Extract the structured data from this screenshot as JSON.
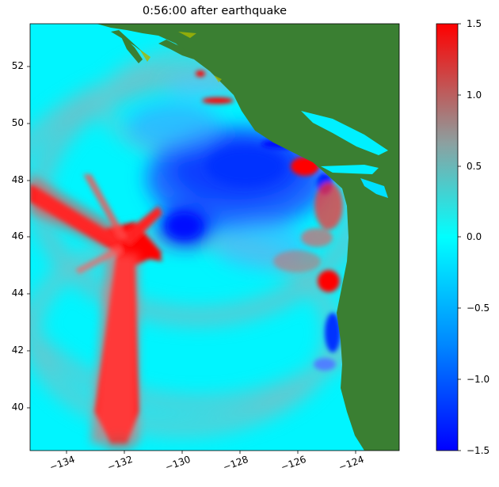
{
  "title": "0:56:00 after earthquake",
  "map": {
    "lon_range": [
      -135,
      -122.2
    ],
    "lat_range": [
      38.5,
      53.5
    ],
    "x_ticks": [
      "−134",
      "−132",
      "−130",
      "−128",
      "−126",
      "−124"
    ],
    "y_ticks": [
      "40",
      "42",
      "44",
      "46",
      "48",
      "50",
      "52"
    ],
    "land_color": "#3a7f32",
    "ocean_base_color": "#00f0ff"
  },
  "colorbar": {
    "min": -1.5,
    "max": 1.5,
    "ticks": [
      "1.5",
      "1.0",
      "0.5",
      "0.0",
      "−0.5",
      "−1.0",
      "−1.5"
    ],
    "colors": [
      "#0000ff",
      "#00aaff",
      "#00ffff",
      "#7fb4b4",
      "#ff0000"
    ]
  }
}
